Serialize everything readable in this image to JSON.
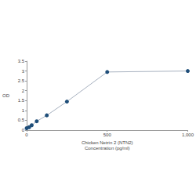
{
  "chart_data": {
    "type": "line",
    "xlabel": "Chicken Netrin 2 (NTN2)\nConcentration (pg/ml)",
    "ylabel": "OD",
    "x": [
      0,
      15.6,
      31.25,
      62.5,
      125,
      250,
      500,
      1000
    ],
    "values": [
      0.1,
      0.15,
      0.25,
      0.45,
      0.75,
      1.45,
      2.95,
      3.0
    ],
    "color": "#1f4e79",
    "marker": "circle",
    "xlim": [
      0,
      1000
    ],
    "xticks": [
      0,
      500,
      1000
    ],
    "ylim": [
      0,
      3.5
    ],
    "yticks": [
      0,
      0.5,
      1,
      1.5,
      2,
      2.5,
      3,
      3.5
    ],
    "grid": false
  }
}
